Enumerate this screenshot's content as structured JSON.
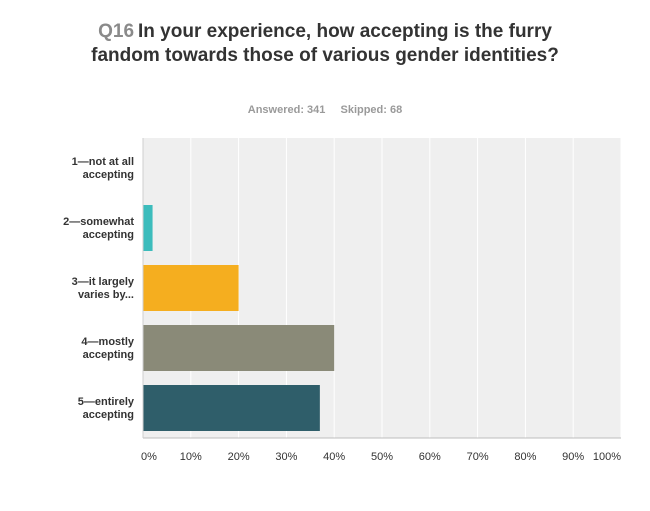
{
  "question": {
    "number": "Q16",
    "text": "In your experience, how accepting is the furry fandom towards those of various gender identities?"
  },
  "stats": {
    "answered": "Answered: 341",
    "skipped": "Skipped: 68"
  },
  "chart_data": {
    "type": "bar",
    "orientation": "horizontal",
    "categories": [
      [
        "1—not at all",
        "accepting"
      ],
      [
        "2—somewhat",
        "accepting"
      ],
      [
        "3—it largely",
        "varies by..."
      ],
      [
        "4—mostly",
        "accepting"
      ],
      [
        "5—entirely",
        "accepting"
      ]
    ],
    "values": [
      0,
      2,
      20,
      40,
      37
    ],
    "colors": [
      "#4a9ad4",
      "#3cbcbc",
      "#f5ae1f",
      "#8a8a78",
      "#2f5e6a"
    ],
    "xlim": [
      0,
      100
    ],
    "xticks": [
      "0%",
      "10%",
      "20%",
      "30%",
      "40%",
      "50%",
      "60%",
      "70%",
      "80%",
      "90%",
      "100%"
    ],
    "grid": true,
    "background": "#efefef"
  }
}
